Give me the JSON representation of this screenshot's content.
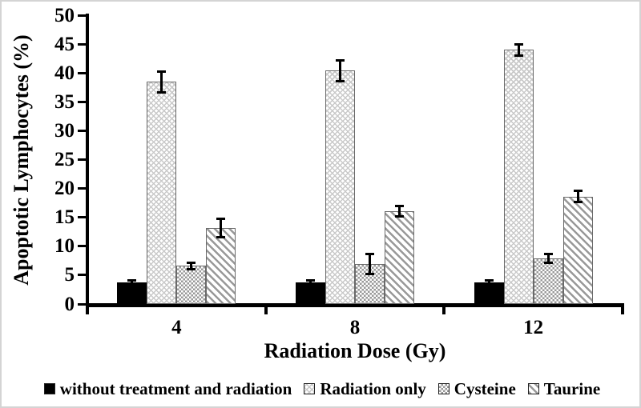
{
  "figure": {
    "background": "#ffffff",
    "frame_color": "#d4d4d4",
    "axis_color": "#000000",
    "error_bar_color": "#000000"
  },
  "chart_data": {
    "type": "bar",
    "title": "",
    "xlabel": "Radiation Dose (Gy)",
    "ylabel": "Apoptotic Lymphocytes (%)",
    "categories": [
      "4",
      "8",
      "12"
    ],
    "ylim": [
      0,
      50
    ],
    "ytick_step": 5,
    "grid": false,
    "legend_position": "bottom",
    "error_bars": true,
    "series": [
      {
        "name": "without treatment and radiation",
        "style": "solid-black",
        "color": "#000000",
        "values": [
          3.7,
          3.7,
          3.7
        ],
        "errors": [
          0.4,
          0.4,
          0.4
        ]
      },
      {
        "name": "Radiation only",
        "style": "light-diagonal-crosshatch",
        "color": "#c9c9c9",
        "values": [
          38.5,
          40.4,
          44.0
        ],
        "errors": [
          1.8,
          1.8,
          1.0
        ]
      },
      {
        "name": "Cysteine",
        "style": "gray-checkerboard",
        "color": "#999999",
        "values": [
          6.6,
          6.9,
          7.9
        ],
        "errors": [
          0.6,
          1.7,
          0.7
        ]
      },
      {
        "name": "Taurine",
        "style": "gray-diagonal-stripes",
        "color": "#999999",
        "values": [
          13.2,
          16.0,
          18.6
        ],
        "errors": [
          1.6,
          0.9,
          1.0
        ]
      }
    ]
  }
}
